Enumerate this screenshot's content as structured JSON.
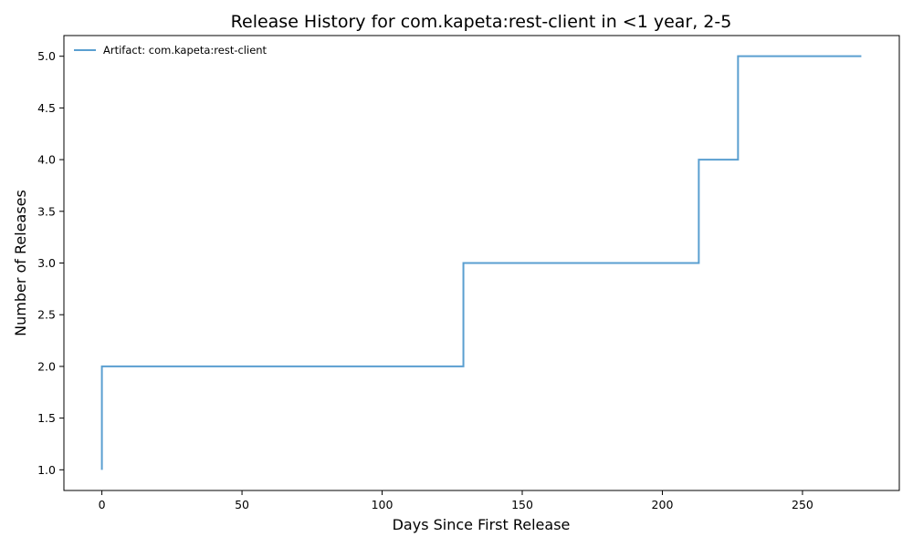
{
  "chart_data": {
    "type": "line",
    "step": "post",
    "title": "Release History for com.kapeta:rest-client in <1 year, 2-5",
    "xlabel": "Days Since First Release",
    "ylabel": "Number of Releases",
    "xlim": [
      -13.55,
      284.55
    ],
    "ylim": [
      0.8,
      5.2
    ],
    "xticks": [
      0,
      50,
      100,
      150,
      200,
      250
    ],
    "xtick_labels": [
      "0",
      "50",
      "100",
      "150",
      "200",
      "250"
    ],
    "yticks": [
      1.0,
      1.5,
      2.0,
      2.5,
      3.0,
      3.5,
      4.0,
      4.5,
      5.0
    ],
    "ytick_labels": [
      "1.0",
      "1.5",
      "2.0",
      "2.5",
      "3.0",
      "3.5",
      "4.0",
      "4.5",
      "5.0"
    ],
    "grid": false,
    "legend_position": "top-left",
    "series": [
      {
        "name": "Artifact: com.kapeta:rest-client",
        "color": "#5a9fd0",
        "x": [
          0,
          0,
          129,
          213,
          227,
          271
        ],
        "y": [
          1,
          2,
          3,
          4,
          5,
          5
        ]
      }
    ]
  }
}
